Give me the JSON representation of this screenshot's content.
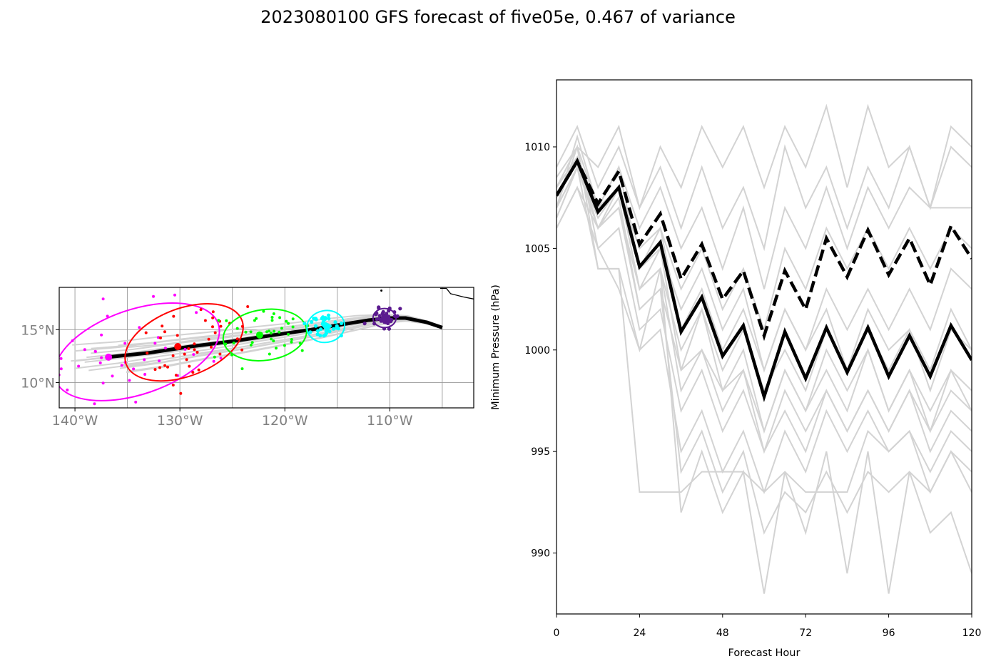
{
  "title": "2023080100 GFS forecast of five05e, 0.467 of variance",
  "chart_data": [
    {
      "type": "map-track",
      "extent": {
        "lon": [
          -141.5,
          -102
        ],
        "lat": [
          7.6,
          19
        ]
      },
      "lon_ticks": [
        -140,
        -130,
        -120,
        -110
      ],
      "lon_tick_labels": [
        "140°W",
        "130°W",
        "120°W",
        "110°W"
      ],
      "lat_ticks": [
        10,
        15
      ],
      "lat_tick_labels": [
        "10°N",
        "15°N"
      ],
      "grid": true,
      "colors": {
        "mean_track": "#000000",
        "members": "#d3d3d3",
        "coast": "#000000"
      },
      "mean_track": {
        "lon": [
          -136.9,
          -133,
          -129,
          -125,
          -121,
          -117.5,
          -114.5,
          -112,
          -110,
          -108.5,
          -106.5,
          -105
        ],
        "lat": [
          12.4,
          12.8,
          13.4,
          13.9,
          14.5,
          15.0,
          15.5,
          15.9,
          16.1,
          16.1,
          15.7,
          15.2
        ]
      },
      "coastline": {
        "lon": [
          -102,
          -103,
          -104.2,
          -104.6,
          -105.2
        ],
        "lat": [
          17.9,
          18.1,
          18.4,
          18.9,
          18.9
        ]
      },
      "island": {
        "lon": -110.8,
        "lat": 18.7
      },
      "clusters": [
        {
          "color": "#ff00ff",
          "center": [
            -134.1,
            12.9
          ],
          "semi_axes_deg": [
            8.2,
            4.0
          ],
          "tilt_deg": -19,
          "mean_point": [
            -136.8,
            12.4
          ]
        },
        {
          "color": "#ff0000",
          "center": [
            -129.6,
            13.8
          ],
          "semi_axes_deg": [
            5.9,
            3.2
          ],
          "tilt_deg": -21,
          "mean_point": [
            -130.2,
            13.4
          ]
        },
        {
          "color": "#00ff00",
          "center": [
            -121.9,
            14.5
          ],
          "semi_axes_deg": [
            4.0,
            2.4
          ],
          "tilt_deg": -8,
          "mean_point": [
            -122.4,
            14.5
          ]
        },
        {
          "color": "#00ffff",
          "center": [
            -116.1,
            15.3
          ],
          "semi_axes_deg": [
            1.8,
            1.5
          ],
          "tilt_deg": -10,
          "mean_point": [
            -116.0,
            15.3
          ]
        },
        {
          "color": "#5b1a8f",
          "center": [
            -110.5,
            16.1
          ],
          "semi_axes_deg": [
            1.1,
            0.9
          ],
          "tilt_deg": 0,
          "mean_point": [
            -110.5,
            16.1
          ]
        }
      ]
    },
    {
      "type": "line",
      "xlabel": "Forecast Hour",
      "ylabel": "Minimum Pressure (hPa)",
      "xlim": [
        0,
        120
      ],
      "ylim": [
        987,
        1013.3
      ],
      "xticks": [
        0,
        24,
        48,
        72,
        96,
        120
      ],
      "yticks": [
        990,
        995,
        1000,
        1005,
        1010
      ],
      "grid": false,
      "colors": {
        "members": "#d3d3d3",
        "mean": "#000000"
      },
      "x": [
        0,
        6,
        12,
        18,
        24,
        30,
        36,
        42,
        48,
        54,
        60,
        66,
        72,
        78,
        84,
        90,
        96,
        102,
        108,
        114,
        120
      ],
      "series": [
        {
          "style": "solid",
          "values": [
            1007.6,
            1009.3,
            1006.8,
            1008.0,
            1004.1,
            1005.3,
            1000.9,
            1002.6,
            999.7,
            1001.2,
            997.7,
            1000.9,
            998.6,
            1001.1,
            998.9,
            1001.1,
            998.7,
            1000.7,
            998.7,
            1001.2,
            999.5
          ]
        },
        {
          "style": "dashed",
          "values": [
            1007.6,
            1009.3,
            1007.2,
            1008.8,
            1005.2,
            1006.7,
            1003.5,
            1005.2,
            1002.5,
            1003.9,
            1000.7,
            1003.9,
            1002.0,
            1005.5,
            1003.6,
            1005.9,
            1003.7,
            1005.5,
            1003.2,
            1006.1,
            1004.5
          ]
        },
        {
          "style": "member",
          "values": [
            1008.5,
            1010.0,
            1009.0,
            1011.0,
            1007.0,
            1010.0,
            1008.0,
            1011.0,
            1009.0,
            1011.0,
            1008.0,
            1011.0,
            1009.0,
            1012.0,
            1008.0,
            1012.0,
            1009.0,
            1010.0,
            1007.0,
            1011.0,
            1010.0
          ]
        },
        {
          "style": "member",
          "values": [
            1009.0,
            1011.0,
            1008.0,
            1010.0,
            1007.0,
            1009.0,
            1006.0,
            1009.0,
            1006.0,
            1008.0,
            1005.0,
            1010.0,
            1007.0,
            1009.0,
            1006.0,
            1009.0,
            1007.0,
            1010.0,
            1007.0,
            1010.0,
            1009.0
          ]
        },
        {
          "style": "member",
          "values": [
            1008.0,
            1010.0,
            1007.0,
            1009.0,
            1006.0,
            1008.0,
            1005.0,
            1007.0,
            1004.0,
            1007.0,
            1003.0,
            1007.0,
            1005.0,
            1008.0,
            1005.0,
            1008.0,
            1006.0,
            1008.0,
            1007.0,
            1007.0,
            1007.0
          ]
        },
        {
          "style": "member",
          "values": [
            1007.5,
            1009.5,
            1007.0,
            1008.0,
            1005.0,
            1006.0,
            1003.0,
            1005.0,
            1002.0,
            1004.0,
            1001.0,
            1005.0,
            1003.0,
            1006.0,
            1004.0,
            1006.0,
            1004.0,
            1006.0,
            1004.0,
            1006.0,
            1005.0
          ]
        },
        {
          "style": "member",
          "values": [
            1007.0,
            1009.0,
            1006.5,
            1008.0,
            1004.0,
            1005.0,
            1002.0,
            1004.0,
            1001.0,
            1003.0,
            999.0,
            1002.0,
            1000.0,
            1003.0,
            1001.0,
            1003.0,
            1001.0,
            1003.0,
            1001.0,
            1004.0,
            1003.0
          ]
        },
        {
          "style": "member",
          "values": [
            1006.5,
            1009.0,
            1007.0,
            1008.0,
            1003.0,
            1004.0,
            1000.0,
            1002.0,
            999.0,
            1001.0,
            998.0,
            1000.0,
            998.0,
            1001.0,
            999.0,
            1001.0,
            999.0,
            1001.0,
            998.0,
            1001.0,
            1000.0
          ]
        },
        {
          "style": "member",
          "values": [
            1006.0,
            1008.0,
            1006.0,
            1007.5,
            1002.0,
            1003.0,
            999.0,
            1000.0,
            998.0,
            999.0,
            996.0,
            999.0,
            997.0,
            999.0,
            997.0,
            1000.0,
            997.0,
            999.0,
            997.0,
            999.0,
            998.0
          ]
        },
        {
          "style": "member",
          "values": [
            1007.0,
            1010.0,
            1005.0,
            1006.0,
            1001.0,
            1002.0,
            997.0,
            999.0,
            996.0,
            998.0,
            995.0,
            997.0,
            995.0,
            998.0,
            996.0,
            998.0,
            996.0,
            998.0,
            995.0,
            997.0,
            996.0
          ]
        },
        {
          "style": "member",
          "values": [
            1008.0,
            1010.0,
            1004.0,
            1004.0,
            1000.0,
            1001.0,
            995.0,
            997.0,
            994.0,
            996.0,
            993.0,
            996.0,
            994.0,
            997.0,
            995.0,
            997.0,
            995.0,
            996.0,
            994.0,
            996.0,
            995.0
          ]
        },
        {
          "style": "member",
          "values": [
            1007.0,
            1009.0,
            1004.0,
            1004.0,
            993.0,
            993.0,
            993.0,
            994.0,
            994.0,
            994.0,
            993.0,
            994.0,
            993.0,
            993.0,
            993.0,
            996.0,
            995.0,
            996.0,
            993.0,
            995.0,
            993.0
          ]
        },
        {
          "style": "member",
          "values": [
            1006.0,
            1008.0,
            1005.0,
            1003.0,
            1000.0,
            1004.0,
            992.0,
            995.0,
            992.0,
            994.0,
            988.0,
            994.0,
            991.0,
            995.0,
            989.0,
            995.0,
            988.0,
            994.0,
            991.0,
            992.0,
            989.0
          ]
        },
        {
          "style": "member",
          "values": [
            1007.0,
            1009.0,
            1006.0,
            1007.0,
            1002.0,
            1003.0,
            994.0,
            996.0,
            993.0,
            995.0,
            991.0,
            993.0,
            992.0,
            994.0,
            992.0,
            994.0,
            993.0,
            994.0,
            993.0,
            995.0,
            994.0
          ]
        },
        {
          "style": "member",
          "values": [
            1008.0,
            1009.5,
            1006.0,
            1008.0,
            1003.0,
            1005.0,
            999.0,
            1002.0,
            998.0,
            1000.0,
            996.0,
            999.0,
            997.0,
            1000.0,
            998.0,
            1000.0,
            997.0,
            999.0,
            996.0,
            999.0,
            997.0
          ]
        },
        {
          "style": "member",
          "values": [
            1007.0,
            1010.5,
            1007.0,
            1009.0,
            1004.0,
            1006.0,
            1001.0,
            1003.0,
            1000.0,
            1002.0,
            999.0,
            1002.0,
            1000.0,
            1002.0,
            999.0,
            1002.0,
            1000.0,
            1001.0,
            999.0,
            1002.0,
            1000.0
          ]
        },
        {
          "style": "member",
          "values": [
            1006.5,
            1009.0,
            1006.0,
            1007.0,
            1003.0,
            1004.0,
            998.0,
            1000.0,
            997.0,
            999.0,
            995.0,
            998.0,
            996.0,
            998.0,
            996.0,
            998.0,
            996.0,
            998.0,
            996.0,
            998.0,
            997.0
          ]
        }
      ]
    }
  ]
}
